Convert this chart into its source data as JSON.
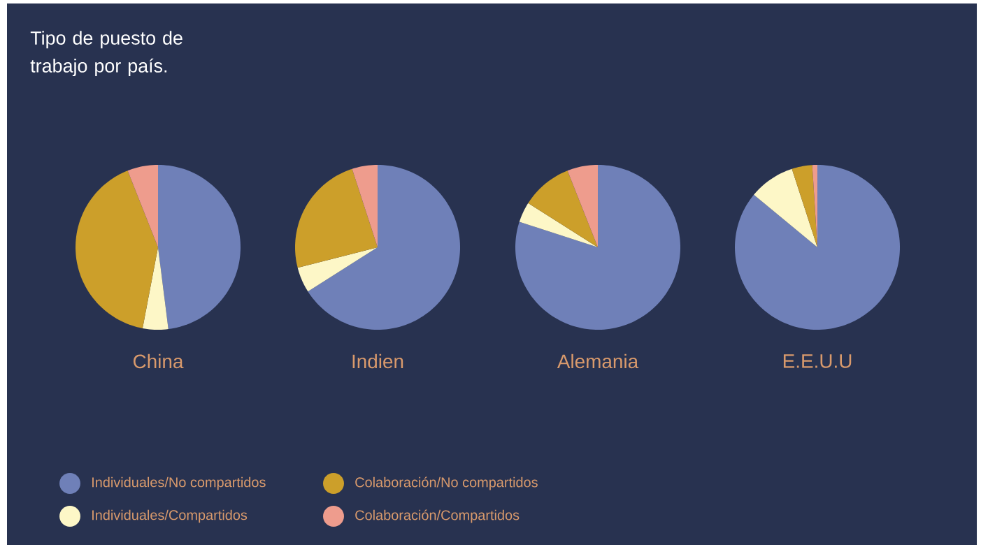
{
  "chart_data": [
    {
      "type": "pie",
      "title": "Tipo de puesto de trabajo por país.",
      "xlabel": "China",
      "legend": "bottom",
      "categories": [
        "Individuales/No compartidos",
        "Individuales/Compartidos",
        "Colaboración/No compartidos",
        "Colaboración/Compartidos"
      ],
      "values": [
        48,
        5,
        41,
        6
      ],
      "colors": [
        "#6f80b8",
        "#fdf7c7",
        "#cc9f2a",
        "#ee9c8d"
      ]
    },
    {
      "type": "pie",
      "xlabel": "Indien",
      "values": [
        66,
        5,
        24,
        5
      ],
      "colors": [
        "#6f80b8",
        "#fdf7c7",
        "#cc9f2a",
        "#ee9c8d"
      ]
    },
    {
      "type": "pie",
      "xlabel": "Alemania",
      "values": [
        80,
        4,
        10,
        6
      ],
      "colors": [
        "#6f80b8",
        "#fdf7c7",
        "#cc9f2a",
        "#ee9c8d"
      ]
    },
    {
      "type": "pie",
      "xlabel": "E.E.U.U",
      "values": [
        86,
        9,
        4,
        1
      ],
      "colors": [
        "#6f80b8",
        "#fdf7c7",
        "#cc9f2a",
        "#ee9c8d"
      ]
    }
  ]
}
